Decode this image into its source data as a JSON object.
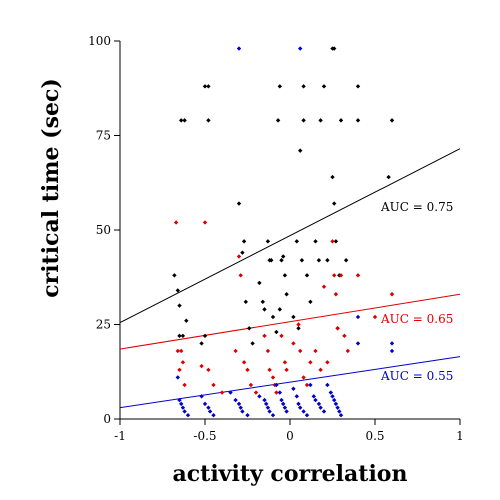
{
  "chart_data": {
    "type": "scatter",
    "xlabel": "activity correlation",
    "ylabel": "critical time (sec)",
    "xlim": [
      -1,
      1
    ],
    "ylim": [
      0,
      100
    ],
    "xticks": [
      -1,
      -0.5,
      0,
      0.5,
      1
    ],
    "xtick_labels": [
      "-1",
      "-0.5",
      "0",
      "0.5",
      "1"
    ],
    "yticks": [
      0,
      25,
      50,
      75,
      100
    ],
    "ytick_labels": [
      "0",
      "25",
      "50",
      "75",
      "100"
    ],
    "grid": false,
    "series": [
      {
        "name": "AUC = 0.75",
        "color": "#000000",
        "fit_line": {
          "x": [
            -1,
            1
          ],
          "y": [
            25.5,
            71.5
          ]
        },
        "points": [
          [
            -0.68,
            38
          ],
          [
            -0.66,
            34
          ],
          [
            -0.65,
            30
          ],
          [
            -0.64,
            79
          ],
          [
            -0.62,
            79
          ],
          [
            -0.65,
            22
          ],
          [
            -0.63,
            22
          ],
          [
            -0.61,
            26
          ],
          [
            -0.5,
            88
          ],
          [
            -0.48,
            88
          ],
          [
            -0.48,
            79
          ],
          [
            -0.5,
            22
          ],
          [
            -0.52,
            20
          ],
          [
            -0.3,
            57
          ],
          [
            -0.27,
            47
          ],
          [
            -0.28,
            44
          ],
          [
            -0.26,
            31
          ],
          [
            -0.24,
            24
          ],
          [
            -0.22,
            20
          ],
          [
            -0.18,
            36
          ],
          [
            -0.16,
            31
          ],
          [
            -0.15,
            29
          ],
          [
            -0.13,
            47
          ],
          [
            -0.12,
            42
          ],
          [
            -0.11,
            42
          ],
          [
            -0.1,
            27
          ],
          [
            -0.08,
            23
          ],
          [
            -0.06,
            29
          ],
          [
            -0.05,
            42
          ],
          [
            -0.03,
            38
          ],
          [
            -0.07,
            79
          ],
          [
            -0.06,
            88
          ],
          [
            -0.04,
            43
          ],
          [
            -0.02,
            33
          ],
          [
            0.02,
            27
          ],
          [
            0.04,
            47
          ],
          [
            0.05,
            24
          ],
          [
            0.07,
            42
          ],
          [
            0.06,
            71
          ],
          [
            0.08,
            79
          ],
          [
            0.08,
            88
          ],
          [
            0.1,
            38
          ],
          [
            0.12,
            31
          ],
          [
            0.15,
            47
          ],
          [
            0.17,
            42
          ],
          [
            0.18,
            79
          ],
          [
            0.2,
            88
          ],
          [
            0.22,
            42
          ],
          [
            0.25,
            98
          ],
          [
            0.26,
            98
          ],
          [
            0.25,
            64
          ],
          [
            0.26,
            57
          ],
          [
            0.27,
            47
          ],
          [
            0.28,
            24
          ],
          [
            0.29,
            38
          ],
          [
            0.3,
            79
          ],
          [
            0.33,
            42
          ],
          [
            0.4,
            88
          ],
          [
            0.4,
            79
          ],
          [
            0.6,
            79
          ],
          [
            0.58,
            64
          ]
        ]
      },
      {
        "name": "AUC = 0.65",
        "color": "#dd0000",
        "fit_line": {
          "x": [
            -1,
            1
          ],
          "y": [
            18.5,
            33
          ]
        },
        "points": [
          [
            -0.67,
            52
          ],
          [
            -0.66,
            18
          ],
          [
            -0.64,
            18
          ],
          [
            -0.63,
            15
          ],
          [
            -0.65,
            13
          ],
          [
            -0.62,
            9
          ],
          [
            -0.5,
            52
          ],
          [
            -0.52,
            14
          ],
          [
            -0.48,
            13
          ],
          [
            -0.45,
            9
          ],
          [
            -0.4,
            7
          ],
          [
            -0.3,
            43
          ],
          [
            -0.29,
            38
          ],
          [
            -0.32,
            18
          ],
          [
            -0.27,
            15
          ],
          [
            -0.25,
            13
          ],
          [
            -0.23,
            9
          ],
          [
            -0.2,
            7
          ],
          [
            -0.15,
            22
          ],
          [
            -0.13,
            18
          ],
          [
            -0.12,
            13
          ],
          [
            -0.1,
            11
          ],
          [
            -0.09,
            9
          ],
          [
            -0.08,
            7
          ],
          [
            -0.05,
            22
          ],
          [
            -0.03,
            15
          ],
          [
            -0.02,
            13
          ],
          [
            0.02,
            20
          ],
          [
            0.05,
            25
          ],
          [
            0.06,
            18
          ],
          [
            0.08,
            11
          ],
          [
            0.1,
            9
          ],
          [
            0.12,
            15
          ],
          [
            0.15,
            18
          ],
          [
            0.18,
            13
          ],
          [
            0.2,
            35
          ],
          [
            0.22,
            15
          ],
          [
            0.25,
            47
          ],
          [
            0.26,
            38
          ],
          [
            0.27,
            33
          ],
          [
            0.28,
            24
          ],
          [
            0.3,
            38
          ],
          [
            0.32,
            22
          ],
          [
            0.34,
            18
          ],
          [
            0.4,
            38
          ],
          [
            0.5,
            27
          ],
          [
            0.6,
            33
          ]
        ]
      },
      {
        "name": "AUC = 0.55",
        "color": "#0000cc",
        "fit_line": {
          "x": [
            -1,
            1
          ],
          "y": [
            3,
            16.5
          ]
        },
        "points": [
          [
            -0.3,
            98
          ],
          [
            0.06,
            98
          ],
          [
            -0.66,
            11
          ],
          [
            -0.65,
            5
          ],
          [
            -0.64,
            4
          ],
          [
            -0.63,
            3
          ],
          [
            -0.62,
            2
          ],
          [
            -0.6,
            1
          ],
          [
            -0.52,
            6
          ],
          [
            -0.5,
            4
          ],
          [
            -0.48,
            3
          ],
          [
            -0.47,
            2
          ],
          [
            -0.45,
            1
          ],
          [
            -0.35,
            7
          ],
          [
            -0.32,
            5
          ],
          [
            -0.3,
            4
          ],
          [
            -0.29,
            3
          ],
          [
            -0.28,
            2
          ],
          [
            -0.25,
            1
          ],
          [
            -0.18,
            6
          ],
          [
            -0.15,
            5
          ],
          [
            -0.14,
            4
          ],
          [
            -0.13,
            3
          ],
          [
            -0.12,
            2
          ],
          [
            -0.1,
            1
          ],
          [
            -0.08,
            9
          ],
          [
            -0.06,
            7
          ],
          [
            -0.05,
            5
          ],
          [
            -0.04,
            4
          ],
          [
            -0.03,
            3
          ],
          [
            -0.02,
            2
          ],
          [
            0.02,
            8
          ],
          [
            0.04,
            6
          ],
          [
            0.05,
            4
          ],
          [
            0.06,
            3
          ],
          [
            0.08,
            2
          ],
          [
            0.1,
            1
          ],
          [
            0.12,
            9
          ],
          [
            0.14,
            6
          ],
          [
            0.15,
            5
          ],
          [
            0.17,
            4
          ],
          [
            0.18,
            3
          ],
          [
            0.2,
            2
          ],
          [
            0.22,
            9
          ],
          [
            0.24,
            7
          ],
          [
            0.25,
            6
          ],
          [
            0.26,
            5
          ],
          [
            0.27,
            4
          ],
          [
            0.28,
            3
          ],
          [
            0.29,
            2
          ],
          [
            0.3,
            1
          ],
          [
            0.4,
            27
          ],
          [
            0.4,
            20
          ],
          [
            0.6,
            20
          ],
          [
            0.6,
            18
          ]
        ]
      }
    ]
  }
}
